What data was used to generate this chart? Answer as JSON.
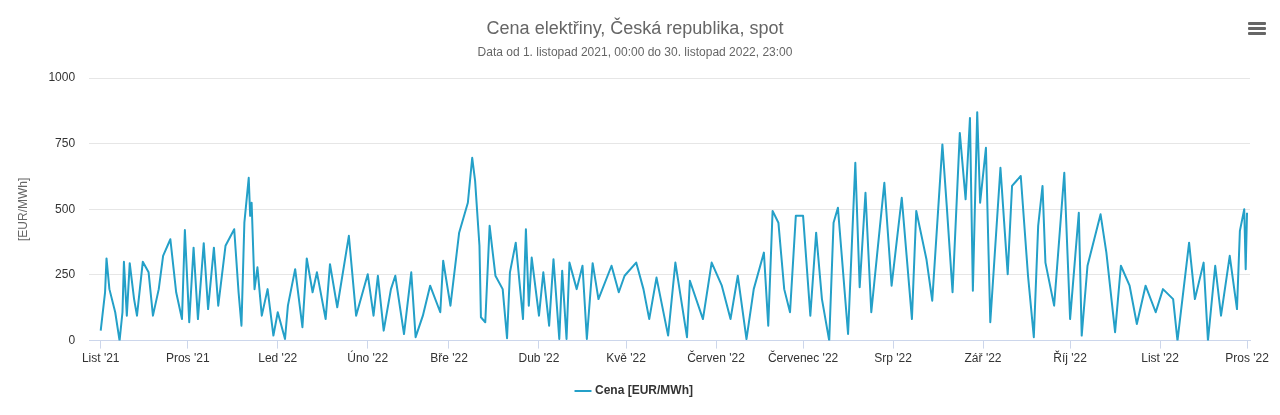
{
  "chart_data": {
    "type": "line",
    "title": "Cena elektřiny, Česká republika, spot",
    "subtitle": "Data od 1. listopad 2021, 00:00 do 30. listopad 2022, 23:00",
    "ylabel": "[EUR/MWh]",
    "x": [
      "2021-11-01",
      "2021-11-02T12:00",
      "2021-11-03",
      "2021-11-04",
      "2021-11-06",
      "2021-11-07T12:00",
      "2021-11-08T12:00",
      "2021-11-09",
      "2021-11-10",
      "2021-11-11",
      "2021-11-12T12:00",
      "2021-11-13T12:00",
      "2021-11-15T12:00",
      "2021-11-17T12:00",
      "2021-11-19",
      "2021-11-21",
      "2021-11-22T12:00",
      "2021-11-25",
      "2021-11-27",
      "2021-11-29",
      "2021-11-30",
      "2021-12-01T12:00",
      "2021-12-03",
      "2021-12-04T12:00",
      "2021-12-06T12:00",
      "2021-12-08",
      "2021-12-10",
      "2021-12-11T12:00",
      "2021-12-14",
      "2021-12-17",
      "2021-12-18T12:00",
      "2021-12-19T12:00",
      "2021-12-20T12:00",
      "2021-12-22",
      "2021-12-22T12:00",
      "2021-12-23",
      "2021-12-24",
      "2021-12-25",
      "2021-12-26T12:00",
      "2021-12-28T12:00",
      "2021-12-30T12:00",
      "2022-01-01",
      "2022-01-03T12:00",
      "2022-01-04T12:00",
      "2022-01-07",
      "2022-01-09T12:00",
      "2022-01-11",
      "2022-01-13",
      "2022-01-14T12:00",
      "2022-01-17T12:00",
      "2022-01-19",
      "2022-01-21T12:00",
      "2022-01-25T12:00",
      "2022-01-28",
      "2022-02-01",
      "2022-02-03",
      "2022-02-04T12:00",
      "2022-02-06T12:00",
      "2022-02-09",
      "2022-02-10T12:00",
      "2022-02-13T12:00",
      "2022-02-16",
      "2022-02-17T12:00",
      "2022-02-20",
      "2022-02-22T12:00",
      "2022-02-26",
      "2022-02-27",
      "2022-03-01T12:00",
      "2022-03-04T12:00",
      "2022-03-07T12:00",
      "2022-03-09",
      "2022-03-10",
      "2022-03-11T12:00",
      "2022-03-12",
      "2022-03-13T12:00",
      "2022-03-15",
      "2022-03-17",
      "2022-03-19T12:00",
      "2022-03-21",
      "2022-03-22",
      "2022-03-24",
      "2022-03-26T12:00",
      "2022-03-27T12:00",
      "2022-03-28T12:00",
      "2022-03-29T12:00",
      "2022-04-01",
      "2022-04-02T12:00",
      "2022-04-04T12:00",
      "2022-04-06",
      "2022-04-08",
      "2022-04-09",
      "2022-04-10T12:00",
      "2022-04-11T12:00",
      "2022-04-14",
      "2022-04-16",
      "2022-04-17T12:00",
      "2022-04-19T12:00",
      "2022-04-21T12:00",
      "2022-04-26",
      "2022-04-28T12:00",
      "2022-04-30T12:00",
      "2022-05-04T12:00",
      "2022-05-07",
      "2022-05-09",
      "2022-05-11T12:00",
      "2022-05-15T12:00",
      "2022-05-18",
      "2022-05-22",
      "2022-05-23",
      "2022-05-27T12:00",
      "2022-05-30T12:00",
      "2022-06-03",
      "2022-06-06",
      "2022-06-08T12:00",
      "2022-06-11T12:00",
      "2022-06-14",
      "2022-06-17T12:00",
      "2022-06-19",
      "2022-06-20T12:00",
      "2022-06-22T12:00",
      "2022-06-24T12:00",
      "2022-06-26T12:00",
      "2022-06-28T12:00",
      "2022-07-01",
      "2022-07-03T12:00",
      "2022-07-05T12:00",
      "2022-07-07T12:00",
      "2022-07-10",
      "2022-07-11T12:00",
      "2022-07-13",
      "2022-07-16T12:00",
      "2022-07-19",
      "2022-07-20T12:00",
      "2022-07-22T12:00",
      "2022-07-24T12:00",
      "2022-07-29",
      "2022-07-31T12:00",
      "2022-08-04",
      "2022-08-07T12:00",
      "2022-08-09",
      "2022-08-12T12:00",
      "2022-08-14T12:00",
      "2022-08-18",
      "2022-08-19T12:00",
      "2022-08-21T12:00",
      "2022-08-24",
      "2022-08-26",
      "2022-08-27T12:00",
      "2022-08-28T12:00",
      "2022-08-30",
      "2022-08-31",
      "2022-09-02",
      "2022-09-03T12:00",
      "2022-09-07",
      "2022-09-09T12:00",
      "2022-09-11",
      "2022-09-14",
      "2022-09-16T12:00",
      "2022-09-18T12:00",
      "2022-09-20",
      "2022-09-21T12:00",
      "2022-09-22T12:00",
      "2022-09-25T12:00",
      "2022-09-29",
      "2022-10-01",
      "2022-10-04",
      "2022-10-05",
      "2022-10-07",
      "2022-10-11T12:00",
      "2022-10-13T12:00",
      "2022-10-16T12:00",
      "2022-10-18T12:00",
      "2022-10-21T12:00",
      "2022-10-24",
      "2022-10-27",
      "2022-10-30T12:00",
      "2022-11-02",
      "2022-11-05T12:00",
      "2022-11-07",
      "2022-11-11",
      "2022-11-13",
      "2022-11-16",
      "2022-11-17T12:00",
      "2022-11-20",
      "2022-11-22",
      "2022-11-25",
      "2022-11-27T12:00",
      "2022-11-28T12:00",
      "2022-11-30",
      "2022-11-30T12:00",
      "2022-11-30T23:00"
    ],
    "series": [
      {
        "name": "Cena [EUR/MWh]",
        "color": "#24a0c8",
        "values": [
          38,
          184,
          313,
          196,
          108,
          0,
          108,
          300,
          95,
          295,
          158,
          95,
          300,
          260,
          95,
          196,
          323,
          386,
          184,
          82,
          421,
          70,
          354,
          82,
          371,
          120,
          354,
          133,
          361,
          424,
          184,
          57,
          449,
          620,
          475,
          525,
          196,
          279,
          95,
          196,
          19,
          108,
          6,
          133,
          272,
          51,
          313,
          184,
          260,
          82,
          291,
          127,
          399,
          95,
          253,
          95,
          247,
          38,
          196,
          247,
          25,
          260,
          13,
          95,
          209,
          108,
          304,
          133,
          411,
          525,
          696,
          608,
          361,
          89,
          70,
          437,
          247,
          196,
          9,
          260,
          373,
          82,
          424,
          133,
          316,
          95,
          260,
          57,
          310,
          6,
          266,
          6,
          297,
          196,
          285,
          6,
          295,
          158,
          285,
          184,
          247,
          297,
          196,
          82,
          240,
          19,
          297,
          13,
          228,
          82,
          297,
          209,
          82,
          247,
          6,
          196,
          335,
          57,
          494,
          449,
          196,
          108,
          475,
          475,
          95,
          411,
          158,
          0,
          449,
          506,
          25,
          677,
          203,
          563,
          108,
          601,
          209,
          544,
          82,
          494,
          310,
          152,
          747,
          513,
          184,
          791,
          538,
          848,
          190,
          870,
          525,
          734,
          70,
          658,
          253,
          589,
          627,
          247,
          13,
          437,
          589,
          297,
          133,
          639,
          82,
          487,
          19,
          285,
          481,
          335,
          32,
          285,
          209,
          63,
          209,
          108,
          196,
          158,
          0,
          373,
          158,
          297,
          0,
          285,
          95,
          323,
          120,
          418,
          500,
          272,
          487
        ]
      }
    ],
    "xlim": [
      "2021-10-28",
      "2022-12-02"
    ],
    "xticks": [
      {
        "value": "2021-11-01",
        "label": "List '21"
      },
      {
        "value": "2021-12-01",
        "label": "Pros '21"
      },
      {
        "value": "2022-01-01",
        "label": "Led '22"
      },
      {
        "value": "2022-02-01",
        "label": "Úno '22"
      },
      {
        "value": "2022-03-01",
        "label": "Bře '22"
      },
      {
        "value": "2022-04-01",
        "label": "Dub '22"
      },
      {
        "value": "2022-05-01",
        "label": "Kvě '22"
      },
      {
        "value": "2022-06-01",
        "label": "Červen '22"
      },
      {
        "value": "2022-07-01",
        "label": "Červenec '22"
      },
      {
        "value": "2022-08-01",
        "label": "Srp '22"
      },
      {
        "value": "2022-09-01",
        "label": "Zář '22"
      },
      {
        "value": "2022-10-01",
        "label": "Říj '22"
      },
      {
        "value": "2022-11-01",
        "label": "List '22"
      },
      {
        "value": "2022-12-01",
        "label": "Pros '22"
      }
    ],
    "ylim": [
      0,
      1000
    ],
    "yticks": [
      0,
      250,
      500,
      750,
      1000
    ],
    "grid": "y",
    "legend": "bottom",
    "marker": "none",
    "line_style": "solid"
  }
}
